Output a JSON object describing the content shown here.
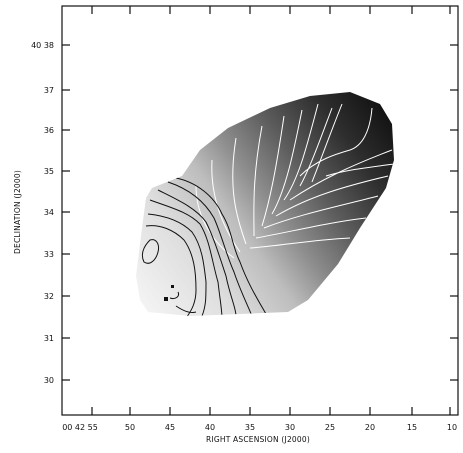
{
  "chart_data": {
    "type": "contour",
    "title": "",
    "xlabel": "RIGHT ASCENSION (J2000)",
    "ylabel": "DECLINATION (J2000)",
    "x_tick_labels": [
      "00 42 55",
      "50",
      "45",
      "40",
      "35",
      "30",
      "25",
      "20",
      "15",
      "10"
    ],
    "y_tick_labels": [
      "40 38",
      "37",
      "36",
      "35",
      "34",
      "33",
      "32",
      "31",
      "30"
    ],
    "grid": false,
    "legend": "none",
    "colors": {
      "frame": "#111111",
      "dark_end": "#141414",
      "light_end": "#f2f2f2",
      "contour_dark_side": "#ffffff",
      "contour_light_side": "#111111"
    }
  }
}
